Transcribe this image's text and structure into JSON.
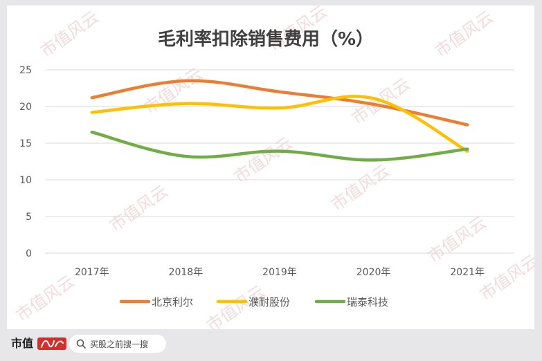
{
  "colors": {
    "page_background": "#e7e7e9",
    "card_background": "#ffffff",
    "gridline": "#d9d9d9",
    "axis_text": "#595959",
    "title_text": "#404040",
    "watermark": "#f2dcdc",
    "brand_red": "#d0312d"
  },
  "chart_data": {
    "type": "line",
    "title": "毛利率扣除销售费用（%）",
    "xlabel": "",
    "ylabel": "",
    "categories": [
      "2017年",
      "2018年",
      "2019年",
      "2020年",
      "2021年"
    ],
    "ylim": [
      0,
      25
    ],
    "yticks": [
      "0",
      "5",
      "10",
      "15",
      "20",
      "25"
    ],
    "grid": true,
    "legend_position": "bottom",
    "series": [
      {
        "name": "北京利尔",
        "color": "#ed7d31",
        "values": [
          21.2,
          23.5,
          22.0,
          20.3,
          17.5
        ]
      },
      {
        "name": "濮耐股份",
        "color": "#ffc000",
        "values": [
          19.2,
          20.4,
          19.8,
          21.1,
          13.9
        ]
      },
      {
        "name": "瑞泰科技",
        "color": "#70ad47",
        "values": [
          16.5,
          13.2,
          13.9,
          12.7,
          14.2
        ]
      }
    ]
  },
  "watermark": {
    "text": "市值风云"
  },
  "footer": {
    "brand": "市值",
    "brand_logo_icon": "feng-yun-calligraphy-logo",
    "search_icon": "magnifier-icon",
    "search_text": "买股之前搜一搜"
  }
}
